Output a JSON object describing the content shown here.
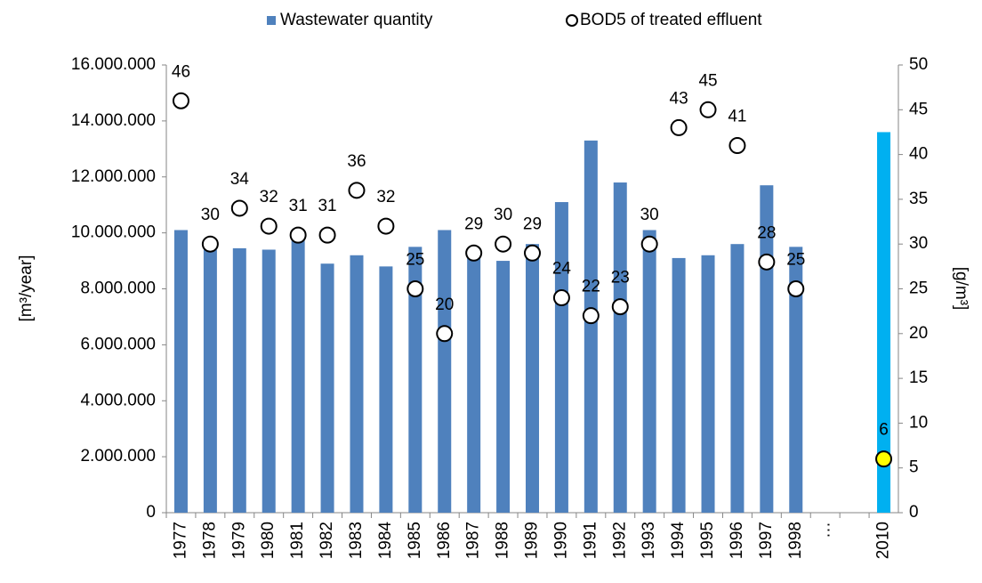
{
  "chart_data": {
    "type": "bar_scatter",
    "categories": [
      "1977",
      "1978",
      "1979",
      "1980",
      "1981",
      "1982",
      "1983",
      "1984",
      "1985",
      "1986",
      "1987",
      "1988",
      "1989",
      "1990",
      "1991",
      "1992",
      "1993",
      "1994",
      "1995",
      "1996",
      "1997",
      "1998",
      "…",
      null,
      "2010"
    ],
    "series": [
      {
        "name": "Wastewater quantity",
        "type": "bar",
        "color": "#4f81bd",
        "colors": [
          "#4f81bd",
          "#4f81bd",
          "#4f81bd",
          "#4f81bd",
          "#4f81bd",
          "#4f81bd",
          "#4f81bd",
          "#4f81bd",
          "#4f81bd",
          "#4f81bd",
          "#4f81bd",
          "#4f81bd",
          "#4f81bd",
          "#4f81bd",
          "#4f81bd",
          "#4f81bd",
          "#4f81bd",
          "#4f81bd",
          "#4f81bd",
          "#4f81bd",
          "#4f81bd",
          "#4f81bd",
          null,
          null,
          "#00b0f0"
        ],
        "values": [
          10100000,
          9400000,
          9450000,
          9400000,
          9800000,
          8900000,
          9200000,
          8800000,
          9500000,
          10100000,
          9200000,
          9000000,
          9600000,
          11100000,
          13300000,
          11800000,
          10100000,
          9100000,
          9200000,
          9600000,
          11700000,
          9500000,
          null,
          null,
          13600000
        ]
      },
      {
        "name": "BOD5 of treated effluent",
        "type": "scatter",
        "axis": "y2",
        "color": "#000000",
        "colors": [
          "#ffffff",
          "#ffffff",
          "#ffffff",
          "#ffffff",
          "#ffffff",
          "#ffffff",
          "#ffffff",
          "#ffffff",
          "#ffffff",
          "#ffffff",
          "#ffffff",
          "#ffffff",
          "#ffffff",
          "#ffffff",
          "#ffffff",
          "#ffffff",
          "#ffffff",
          "#ffffff",
          "#ffffff",
          "#ffffff",
          "#ffffff",
          "#ffffff",
          null,
          null,
          "#ffff00"
        ],
        "values": [
          46,
          30,
          34,
          32,
          31,
          31,
          36,
          32,
          25,
          20,
          29,
          30,
          29,
          24,
          22,
          23,
          30,
          43,
          45,
          41,
          28,
          25,
          null,
          null,
          6
        ]
      }
    ],
    "ylabel": "[m³/year]",
    "y2label": "[g/m³]",
    "ylim": [
      0,
      16000000
    ],
    "yticks": [
      0,
      {
        "value": 2000000,
        "label": "2.000.000"
      },
      {
        "value": 4000000,
        "label": "4.000.000"
      },
      {
        "value": 6000000,
        "label": "6.000.000"
      },
      {
        "value": 8000000,
        "label": "8.000.000"
      },
      {
        "value": 10000000,
        "label": "10.000.000"
      },
      {
        "value": 12000000,
        "label": "12.000.000"
      },
      {
        "value": 14000000,
        "label": "14.000.000"
      },
      {
        "value": 16000000,
        "label": "16.000.000"
      }
    ],
    "y2lim": [
      0,
      50
    ],
    "y2ticks": [
      0,
      5,
      10,
      15,
      20,
      25,
      30,
      35,
      40,
      45,
      50
    ],
    "legend": "top",
    "grid": false
  }
}
